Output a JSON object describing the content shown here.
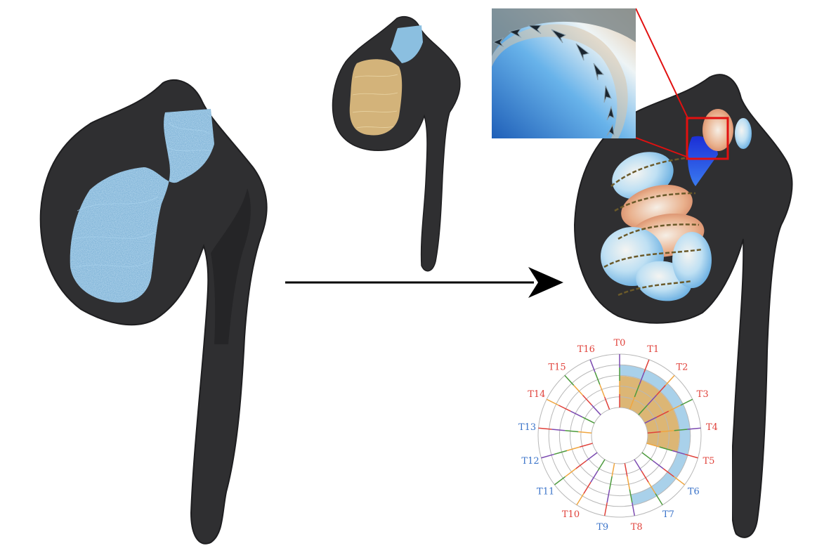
{
  "colors": {
    "aorta": "#2f2f31",
    "aorta_edge": "#1e1e20",
    "pathline_blue": "#7ab4d8",
    "pathline_tan": "#d3b37a",
    "arrow": "#000000",
    "inset_border": "#e11010",
    "label_red": "#e0413a",
    "label_blue": "#3a73c9",
    "ring_blue": "#a9d1ea",
    "ring_tan": "#dcb675",
    "ring_line": "#b8b8b8"
  },
  "figure": {
    "panels": [
      {
        "name": "full-pathlines",
        "icon": "aorta-blue-pathlines"
      },
      {
        "name": "selected-pathlines",
        "icon": "aorta-tan-pathlines"
      },
      {
        "name": "vortex-surfaces",
        "icon": "aorta-vortex-surfaces"
      }
    ],
    "transition_arrow": "arrow-right-icon"
  },
  "radial_chart": {
    "labels": [
      "T0",
      "T1",
      "T2",
      "T3",
      "T4",
      "T5",
      "T6",
      "T7",
      "T8",
      "T9",
      "T10",
      "T11",
      "T12",
      "T13",
      "T14",
      "T15",
      "T16"
    ],
    "label_colors": [
      "red",
      "red",
      "red",
      "red",
      "red",
      "red",
      "blue",
      "blue",
      "red",
      "blue",
      "red",
      "blue",
      "blue",
      "blue",
      "red",
      "red",
      "red"
    ],
    "rings": 5,
    "outer_band": {
      "label_start": "T0",
      "label_end": "T8",
      "fill": "blue"
    },
    "inner_band": {
      "label_start": "T0",
      "label_end": "T5",
      "fill": "tan"
    }
  }
}
